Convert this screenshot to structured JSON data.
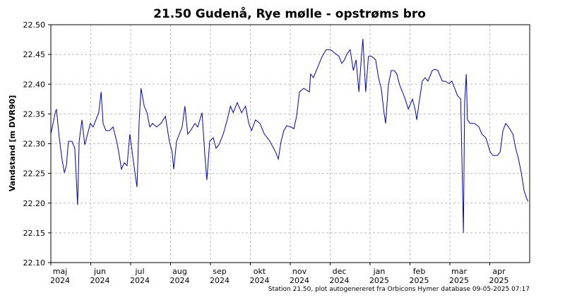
{
  "chart_data": {
    "type": "line",
    "title": "21.50  Gudenå, Rye mølle - opstrøms bro",
    "y_label": "Vandstand [m DVR90]",
    "footnote": "Station 21.50, plot autogenereret fra Orbicons Hymer database 09-05-2025 07:17",
    "xlim": [
      0,
      12.0
    ],
    "xticks": [
      {
        "value": 0,
        "label": "maj\n2024"
      },
      {
        "value": 1,
        "label": "jun\n2024"
      },
      {
        "value": 2,
        "label": "jul\n2024"
      },
      {
        "value": 3,
        "label": "aug\n2024"
      },
      {
        "value": 4,
        "label": "sep\n2024"
      },
      {
        "value": 5,
        "label": "okt\n2024"
      },
      {
        "value": 6,
        "label": "nov\n2024"
      },
      {
        "value": 7,
        "label": "dec\n2024"
      },
      {
        "value": 8,
        "label": "jan\n2025"
      },
      {
        "value": 9,
        "label": "feb\n2025"
      },
      {
        "value": 10,
        "label": "mar\n2025"
      },
      {
        "value": 11,
        "label": "apr\n2025"
      }
    ],
    "ylim": [
      22.1,
      22.5
    ],
    "yticks": [
      {
        "value": 22.1,
        "label": "22.10"
      },
      22.15,
      {
        "value": 22.2,
        "label": "22.20"
      },
      22.25,
      {
        "value": 22.3,
        "label": "22.30"
      },
      22.35,
      {
        "value": 22.4,
        "label": "22.40"
      },
      22.45,
      {
        "value": 22.5,
        "label": "22.50"
      }
    ],
    "grid": true,
    "x": [
      0,
      0.11,
      0.14,
      0.21,
      0.28,
      0.34,
      0.39,
      0.44,
      0.53,
      0.6,
      0.67,
      0.71,
      0.78,
      0.85,
      0.92,
      0.99,
      1.06,
      1.13,
      1.2,
      1.26,
      1.31,
      1.38,
      1.47,
      1.56,
      1.65,
      1.7,
      1.77,
      1.84,
      1.91,
      1.98,
      2.05,
      2.12,
      2.16,
      2.21,
      2.26,
      2.34,
      2.41,
      2.48,
      2.55,
      2.65,
      2.76,
      2.87,
      2.97,
      3.04,
      3.08,
      3.15,
      3.22,
      3.29,
      3.36,
      3.43,
      3.5,
      3.61,
      3.68,
      3.79,
      3.86,
      3.91,
      3.98,
      4.07,
      4.14,
      4.21,
      4.32,
      4.42,
      4.5,
      4.57,
      4.67,
      4.78,
      4.88,
      4.96,
      5.03,
      5.13,
      5.24,
      5.35,
      5.49,
      5.63,
      5.7,
      5.77,
      5.84,
      5.91,
      6.02,
      6.09,
      6.16,
      6.23,
      6.34,
      6.48,
      6.51,
      6.58,
      6.69,
      6.8,
      6.9,
      7.01,
      7.12,
      7.22,
      7.29,
      7.36,
      7.43,
      7.5,
      7.58,
      7.65,
      7.72,
      7.79,
      7.82,
      7.89,
      7.96,
      8.04,
      8.14,
      8.21,
      8.28,
      8.35,
      8.39,
      8.46,
      8.53,
      8.6,
      8.67,
      8.74,
      8.81,
      8.88,
      8.96,
      9.06,
      9.13,
      9.17,
      9.24,
      9.31,
      9.38,
      9.45,
      9.56,
      9.63,
      9.7,
      9.81,
      9.88,
      9.98,
      10.05,
      10.12,
      10.19,
      10.27,
      10.34,
      10.37,
      10.41,
      10.44,
      10.51,
      10.62,
      10.73,
      10.8,
      10.9,
      11.01,
      11.08,
      11.19,
      11.26,
      11.33,
      11.4,
      11.47,
      11.58,
      11.65,
      11.72,
      11.79,
      11.86,
      11.93,
      11.96
    ],
    "series": [
      {
        "name": "Vandstand",
        "color": "#0000c8",
        "values": [
          22.316,
          22.352,
          22.358,
          22.31,
          22.274,
          22.251,
          22.263,
          22.304,
          22.304,
          22.292,
          22.197,
          22.304,
          22.34,
          22.298,
          22.316,
          22.334,
          22.328,
          22.34,
          22.352,
          22.387,
          22.334,
          22.322,
          22.322,
          22.328,
          22.304,
          22.286,
          22.257,
          22.268,
          22.263,
          22.316,
          22.28,
          22.245,
          22.227,
          22.334,
          22.393,
          22.363,
          22.352,
          22.328,
          22.334,
          22.328,
          22.334,
          22.346,
          22.304,
          22.286,
          22.257,
          22.304,
          22.316,
          22.328,
          22.363,
          22.316,
          22.322,
          22.334,
          22.328,
          22.352,
          22.28,
          22.239,
          22.304,
          22.31,
          22.292,
          22.298,
          22.316,
          22.34,
          22.363,
          22.352,
          22.369,
          22.352,
          22.363,
          22.334,
          22.322,
          22.34,
          22.334,
          22.316,
          22.304,
          22.286,
          22.274,
          22.304,
          22.322,
          22.33,
          22.328,
          22.325,
          22.346,
          22.387,
          22.393,
          22.387,
          22.417,
          22.411,
          22.429,
          22.447,
          22.458,
          22.458,
          22.452,
          22.447,
          22.435,
          22.441,
          22.452,
          22.458,
          22.423,
          22.441,
          22.387,
          22.452,
          22.476,
          22.387,
          22.447,
          22.447,
          22.441,
          22.411,
          22.393,
          22.352,
          22.334,
          22.399,
          22.423,
          22.423,
          22.417,
          22.399,
          22.387,
          22.375,
          22.358,
          22.375,
          22.358,
          22.34,
          22.375,
          22.405,
          22.411,
          22.405,
          22.423,
          22.425,
          22.423,
          22.405,
          22.405,
          22.401,
          22.405,
          22.393,
          22.381,
          22.375,
          22.15,
          22.369,
          22.417,
          22.34,
          22.334,
          22.334,
          22.328,
          22.316,
          22.31,
          22.286,
          22.28,
          22.28,
          22.286,
          22.322,
          22.334,
          22.328,
          22.316,
          22.292,
          22.274,
          22.251,
          22.221,
          22.207,
          22.203
        ]
      }
    ]
  }
}
